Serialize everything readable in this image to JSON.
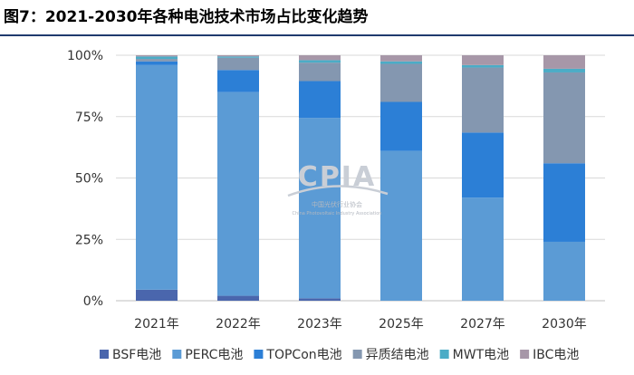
{
  "figure": {
    "title": "图7：2021-2030年各种电池技术市场占比变化趋势"
  },
  "watermark": {
    "text": "CPIA",
    "subtitle": "中国光伏行业协会",
    "subtitle_en": "China Photovoltaic Industry Association"
  },
  "chart_data": {
    "type": "bar",
    "stacked": true,
    "categories": [
      "2021年",
      "2022年",
      "2023年",
      "2025年",
      "2027年",
      "2030年"
    ],
    "y_ticks": [
      "0%",
      "25%",
      "50%",
      "75%",
      "100%"
    ],
    "ylim": [
      0,
      100
    ],
    "grid": true,
    "legend_position": "bottom",
    "series": [
      {
        "name": "BSF电池",
        "color": "#4a66ad",
        "values": [
          4.5,
          2,
          1,
          0,
          0,
          0
        ]
      },
      {
        "name": "PERC电池",
        "color": "#5b9bd5",
        "values": [
          91.5,
          83,
          73.5,
          61,
          42,
          24
        ]
      },
      {
        "name": "TOPCon电池",
        "color": "#2c7fd6",
        "values": [
          1.5,
          9,
          15,
          20,
          26.5,
          32
        ]
      },
      {
        "name": "异质结电池",
        "color": "#8497b0",
        "values": [
          1,
          5,
          7.5,
          15.5,
          26.5,
          37
        ]
      },
      {
        "name": "MWT电池",
        "color": "#4bacc6",
        "values": [
          1,
          0.5,
          1,
          1,
          1,
          1.5
        ]
      },
      {
        "name": "IBC电池",
        "color": "#a797a8",
        "values": [
          0.5,
          0.5,
          2,
          2.5,
          4,
          5.5
        ]
      }
    ]
  }
}
